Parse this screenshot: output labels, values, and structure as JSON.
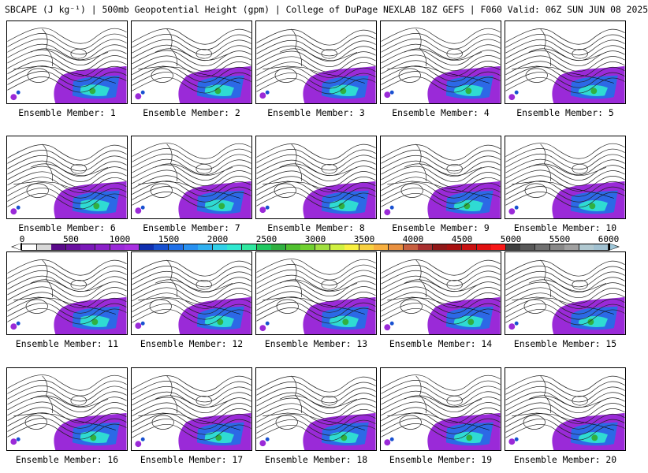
{
  "header": {
    "title": "SBCAPE (J kg⁻¹) | 500mb Geopotential Height (gpm) | College of DuPage NEXLAB 18Z GEFS | F060 Valid: 06Z SUN JUN 08 2025"
  },
  "members": [
    {
      "label": "Ensemble Member: 1"
    },
    {
      "label": "Ensemble Member: 2"
    },
    {
      "label": "Ensemble Member: 3"
    },
    {
      "label": "Ensemble Member: 4"
    },
    {
      "label": "Ensemble Member: 5"
    },
    {
      "label": "Ensemble Member: 6"
    },
    {
      "label": "Ensemble Member: 7"
    },
    {
      "label": "Ensemble Member: 8"
    },
    {
      "label": "Ensemble Member: 9"
    },
    {
      "label": "Ensemble Member: 10"
    },
    {
      "label": "Ensemble Member: 11"
    },
    {
      "label": "Ensemble Member: 12"
    },
    {
      "label": "Ensemble Member: 13"
    },
    {
      "label": "Ensemble Member: 14"
    },
    {
      "label": "Ensemble Member: 15"
    },
    {
      "label": "Ensemble Member: 16"
    },
    {
      "label": "Ensemble Member: 17"
    },
    {
      "label": "Ensemble Member: 18"
    },
    {
      "label": "Ensemble Member: 19"
    },
    {
      "label": "Ensemble Member: 20"
    }
  ],
  "colorbar": {
    "ticks": [
      "0",
      "500",
      "1000",
      "1500",
      "2000",
      "2500",
      "3000",
      "3500",
      "4000",
      "4500",
      "5000",
      "5500",
      "6000"
    ],
    "colors": [
      "#ffffff",
      "#d8d8d8",
      "#5a0a8a",
      "#6a10a0",
      "#7a18b8",
      "#8a20c8",
      "#9a2ad8",
      "#a830e0",
      "#1030b0",
      "#1850d0",
      "#2070e8",
      "#2890f0",
      "#30b0f0",
      "#30d0e8",
      "#30e8d0",
      "#30e8a0",
      "#20c860",
      "#30b040",
      "#50c030",
      "#70d030",
      "#a0e040",
      "#d0f040",
      "#f8f040",
      "#f8d040",
      "#f8b040",
      "#e89040",
      "#c86040",
      "#a83030",
      "#901818",
      "#a81010",
      "#c81010",
      "#e01010",
      "#f81818",
      "#404040",
      "#585858",
      "#707070",
      "#888888",
      "#a0a0a0",
      "#b0c8d0",
      "#a0c0d0"
    ],
    "accent_cape": "#9a2ad8",
    "accent_high": "#30e8d0"
  }
}
